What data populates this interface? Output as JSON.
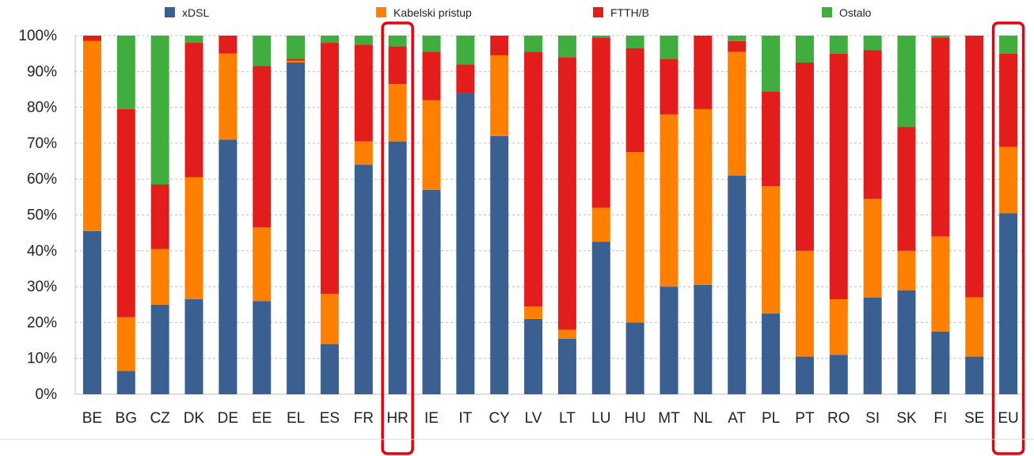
{
  "chart_data": {
    "type": "bar",
    "stacked": true,
    "percent": true,
    "categories": [
      "BE",
      "BG",
      "CZ",
      "DK",
      "DE",
      "EE",
      "EL",
      "ES",
      "FR",
      "HR",
      "IE",
      "IT",
      "CY",
      "LV",
      "LT",
      "LU",
      "HU",
      "MT",
      "NL",
      "AT",
      "PL",
      "PT",
      "RO",
      "SI",
      "SK",
      "FI",
      "SE",
      "EU"
    ],
    "series": [
      {
        "name": "xDSL",
        "color": "#3a5f91",
        "values": [
          45.5,
          6.5,
          25,
          26.5,
          71,
          26,
          92.5,
          14,
          64,
          70.5,
          57,
          84,
          72,
          21,
          15.5,
          42.5,
          20,
          30,
          30.5,
          61,
          22.5,
          10.5,
          11,
          27,
          29,
          17.5,
          10.5,
          50.5
        ]
      },
      {
        "name": "Kabelski pristup",
        "color": "#ff8000",
        "values": [
          53,
          15,
          15.5,
          34,
          24,
          20.5,
          0.5,
          14,
          6.5,
          16,
          25,
          0,
          22.5,
          3.5,
          2.5,
          9.5,
          47.5,
          48,
          49,
          34.5,
          35.5,
          29.5,
          15.5,
          27.5,
          11,
          26.5,
          16.5,
          18.5
        ]
      },
      {
        "name": "FTTH/B",
        "color": "#e31c1c",
        "values": [
          1.5,
          58,
          18,
          37.5,
          5,
          45,
          0.5,
          70,
          27,
          10.5,
          13.5,
          8,
          5.5,
          71,
          76,
          47.5,
          29,
          15.5,
          20.5,
          3,
          26.5,
          52.5,
          68.5,
          41.5,
          34.5,
          55.5,
          73,
          26
        ]
      },
      {
        "name": "Ostalo",
        "color": "#3fae3f",
        "values": [
          0,
          20.5,
          41.5,
          2,
          0,
          8.5,
          6.5,
          2,
          2.5,
          3,
          4.5,
          8,
          0,
          4.5,
          6,
          0.5,
          3.5,
          6.5,
          0,
          1.5,
          15.5,
          7.5,
          5,
          4,
          25.5,
          0.5,
          0,
          5
        ]
      }
    ],
    "ylim": [
      0,
      100
    ],
    "yticks": [
      "0%",
      "10%",
      "20%",
      "30%",
      "40%",
      "50%",
      "60%",
      "70%",
      "80%",
      "90%",
      "100%"
    ],
    "grid": true,
    "legend_position": "top",
    "highlighted": [
      "HR",
      "EU"
    ],
    "highlight_color": "#e8000d"
  }
}
